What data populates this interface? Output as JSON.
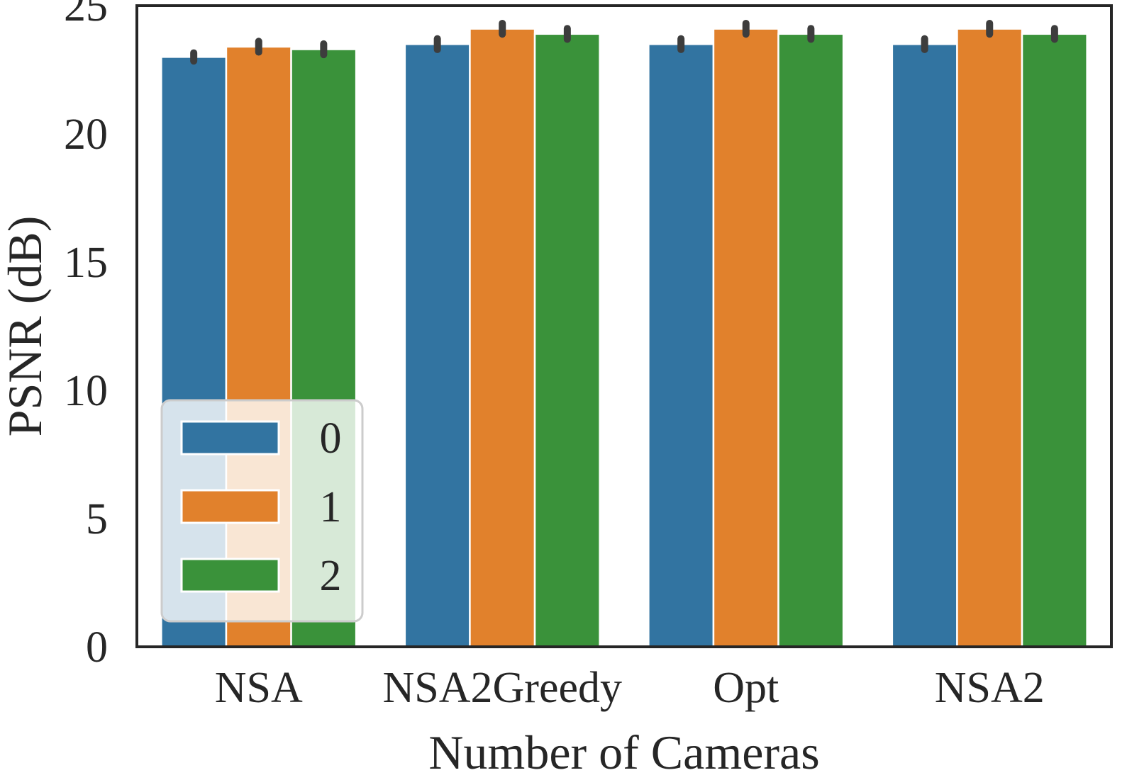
{
  "chart_data": {
    "type": "bar",
    "title": "",
    "xlabel": "Number of Cameras",
    "ylabel": "PSNR (dB)",
    "categories": [
      "NSA",
      "NSA2Greedy",
      "Opt",
      "NSA2"
    ],
    "ylim": [
      0,
      25
    ],
    "yticks": [
      0,
      5,
      10,
      15,
      20,
      25
    ],
    "series": [
      {
        "name": "0",
        "color": "#3274a1",
        "values": [
          23.0,
          23.5,
          23.5,
          23.5
        ],
        "error": [
          0.05,
          0.1,
          0.1,
          0.1
        ]
      },
      {
        "name": "1",
        "color": "#e1812c",
        "values": [
          23.4,
          24.1,
          24.1,
          24.1
        ],
        "error": [
          0.1,
          0.1,
          0.1,
          0.1
        ]
      },
      {
        "name": "2",
        "color": "#3a923a",
        "values": [
          23.3,
          23.9,
          23.9,
          23.9
        ],
        "error": [
          0.1,
          0.1,
          0.1,
          0.1
        ]
      }
    ],
    "grid": false,
    "legend_position": "lower-left",
    "errorbar_color": "#3d3d3d"
  }
}
